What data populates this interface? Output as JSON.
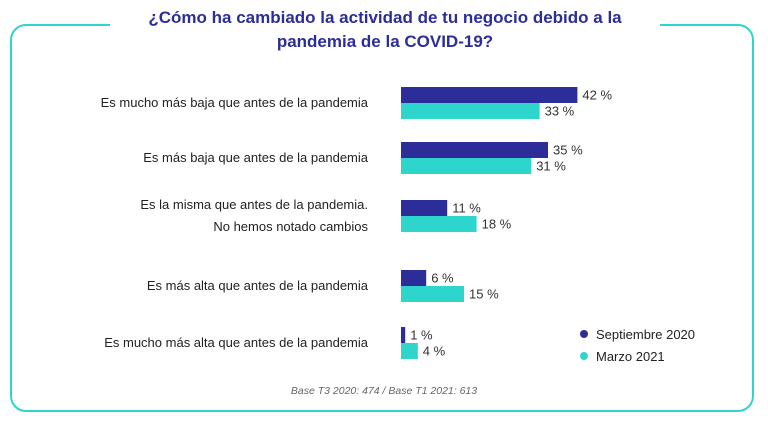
{
  "chart_data": {
    "type": "bar",
    "orientation": "horizontal",
    "title": "¿Cómo ha cambiado la actividad de tu negocio debido a la pandemia de la COVID-19?",
    "title_lines": [
      "¿Cómo ha cambiado la actividad de tu negocio debido a la",
      "pandemia de la COVID-19?"
    ],
    "categories": [
      [
        "Es mucho más baja que antes de la pandemia"
      ],
      [
        "Es más baja que antes de la pandemia"
      ],
      [
        "Es la misma que antes de la pandemia.",
        "No hemos notado cambios"
      ],
      [
        "Es más alta que antes de la pandemia"
      ],
      [
        "Es mucho más alta que antes de la pandemia"
      ]
    ],
    "series": [
      {
        "name": "Septiembre 2020",
        "color": "#2d2d9a",
        "values": [
          42,
          35,
          11,
          6,
          1
        ]
      },
      {
        "name": "Marzo 2021",
        "color": "#2ed5cc",
        "values": [
          33,
          31,
          18,
          15,
          4
        ]
      }
    ],
    "value_suffix": " %",
    "legend_position": "bottom-right",
    "footnote": "Base T3 2020: 474 / Base T1 2021: 613"
  }
}
